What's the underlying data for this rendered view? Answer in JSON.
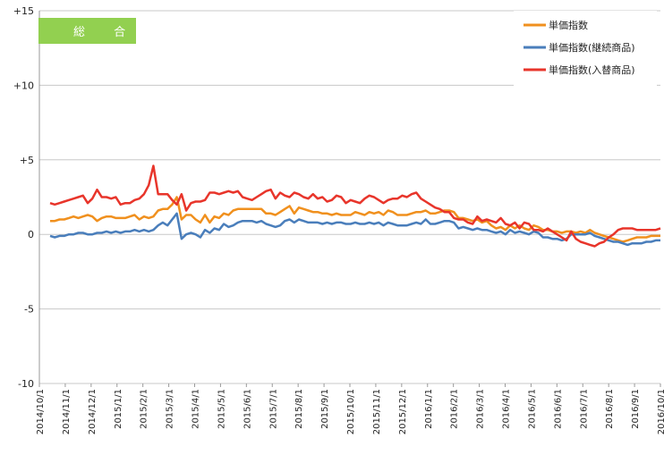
{
  "chart_data": {
    "type": "line",
    "badge": {
      "label": "総 合",
      "color": "#92d050"
    },
    "ylim": [
      -10,
      15
    ],
    "yticks": [
      {
        "value": 15,
        "label": "+15"
      },
      {
        "value": 10,
        "label": "+10"
      },
      {
        "value": 5,
        "label": "+5"
      },
      {
        "value": 0,
        "label": "0"
      },
      {
        "value": -5,
        "label": "-5"
      },
      {
        "value": -10,
        "label": "-10"
      }
    ],
    "xtick_labels": [
      "2014/10/1",
      "2014/11/1",
      "2014/12/1",
      "2015/1/1",
      "2015/2/1",
      "2015/3/1",
      "2015/4/1",
      "2015/5/1",
      "2015/6/1",
      "2015/7/1",
      "2015/8/1",
      "2015/9/1",
      "2015/10/1",
      "2015/11/1",
      "2015/12/1",
      "2016/1/1",
      "2016/2/1",
      "2016/3/1",
      "2016/4/1",
      "2016/5/1",
      "2016/6/1",
      "2016/7/1",
      "2016/8/1",
      "2016/9/1",
      "2016/10/1"
    ],
    "grid": "horizontal",
    "legend_position": "top-right",
    "note": "Weekly values; 24 monthly tick intervals with 4-5 points per month.",
    "series": [
      {
        "name": "単価指数",
        "color": "#f0901e",
        "values": [
          0.9,
          0.9,
          1.0,
          1.0,
          1.1,
          1.2,
          1.1,
          1.2,
          1.3,
          1.2,
          0.9,
          1.1,
          1.2,
          1.2,
          1.1,
          1.1,
          1.1,
          1.2,
          1.3,
          1.0,
          1.2,
          1.1,
          1.2,
          1.6,
          1.7,
          1.7,
          2.0,
          2.5,
          1.0,
          1.3,
          1.3,
          1.0,
          0.8,
          1.3,
          0.8,
          1.2,
          1.1,
          1.4,
          1.3,
          1.6,
          1.7,
          1.7,
          1.7,
          1.7,
          1.7,
          1.7,
          1.4,
          1.4,
          1.3,
          1.5,
          1.7,
          1.9,
          1.4,
          1.8,
          1.7,
          1.6,
          1.5,
          1.5,
          1.4,
          1.4,
          1.3,
          1.4,
          1.3,
          1.3,
          1.3,
          1.5,
          1.4,
          1.3,
          1.5,
          1.4,
          1.5,
          1.3,
          1.6,
          1.5,
          1.3,
          1.3,
          1.3,
          1.4,
          1.5,
          1.5,
          1.6,
          1.4,
          1.4,
          1.5,
          1.6,
          1.6,
          1.5,
          1.1,
          1.1,
          1.0,
          0.9,
          1.0,
          0.8,
          0.9,
          0.6,
          0.4,
          0.5,
          0.3,
          0.6,
          0.4,
          0.6,
          0.4,
          0.3,
          0.6,
          0.5,
          0.3,
          0.3,
          0.2,
          0.2,
          0.1,
          0.2,
          0.2,
          0.1,
          0.2,
          0.1,
          0.3,
          0.1,
          0.0,
          -0.1,
          -0.2,
          -0.3,
          -0.4,
          -0.5,
          -0.4,
          -0.3,
          -0.2,
          -0.2,
          -0.2,
          -0.1,
          -0.1,
          -0.1
        ]
      },
      {
        "name": "単価指数(継続商品)",
        "color": "#4a7ebb",
        "values": [
          -0.1,
          -0.2,
          -0.1,
          -0.1,
          0.0,
          0.0,
          0.1,
          0.1,
          0.0,
          0.0,
          0.1,
          0.1,
          0.2,
          0.1,
          0.2,
          0.1,
          0.2,
          0.2,
          0.3,
          0.2,
          0.3,
          0.2,
          0.3,
          0.6,
          0.8,
          0.6,
          1.0,
          1.4,
          -0.3,
          0.0,
          0.1,
          0.0,
          -0.2,
          0.3,
          0.1,
          0.4,
          0.3,
          0.7,
          0.5,
          0.6,
          0.8,
          0.9,
          0.9,
          0.9,
          0.8,
          0.9,
          0.7,
          0.6,
          0.5,
          0.6,
          0.9,
          1.0,
          0.8,
          1.0,
          0.9,
          0.8,
          0.8,
          0.8,
          0.7,
          0.8,
          0.7,
          0.8,
          0.8,
          0.7,
          0.7,
          0.8,
          0.7,
          0.7,
          0.8,
          0.7,
          0.8,
          0.6,
          0.8,
          0.7,
          0.6,
          0.6,
          0.6,
          0.7,
          0.8,
          0.7,
          1.0,
          0.7,
          0.7,
          0.8,
          0.9,
          0.9,
          0.8,
          0.4,
          0.5,
          0.4,
          0.3,
          0.4,
          0.3,
          0.3,
          0.2,
          0.1,
          0.2,
          0.0,
          0.3,
          0.1,
          0.2,
          0.1,
          0.0,
          0.2,
          0.1,
          -0.2,
          -0.2,
          -0.3,
          -0.3,
          -0.4,
          -0.3,
          0.0,
          0.0,
          0.0,
          0.0,
          0.1,
          -0.1,
          -0.2,
          -0.3,
          -0.4,
          -0.5,
          -0.5,
          -0.6,
          -0.7,
          -0.6,
          -0.6,
          -0.6,
          -0.5,
          -0.5,
          -0.4,
          -0.4
        ]
      },
      {
        "name": "単価指数(入替商品)",
        "color": "#e8352b",
        "values": [
          2.1,
          2.0,
          2.1,
          2.2,
          2.3,
          2.4,
          2.5,
          2.6,
          2.1,
          2.4,
          3.0,
          2.5,
          2.5,
          2.4,
          2.5,
          2.0,
          2.1,
          2.1,
          2.3,
          2.4,
          2.7,
          3.3,
          4.6,
          2.7,
          2.7,
          2.7,
          2.3,
          2.0,
          2.7,
          1.6,
          2.1,
          2.2,
          2.2,
          2.3,
          2.8,
          2.8,
          2.7,
          2.8,
          2.9,
          2.8,
          2.9,
          2.5,
          2.4,
          2.3,
          2.5,
          2.7,
          2.9,
          3.0,
          2.4,
          2.8,
          2.6,
          2.5,
          2.8,
          2.7,
          2.5,
          2.4,
          2.7,
          2.4,
          2.5,
          2.2,
          2.3,
          2.6,
          2.5,
          2.1,
          2.3,
          2.2,
          2.1,
          2.4,
          2.6,
          2.5,
          2.3,
          2.1,
          2.3,
          2.4,
          2.4,
          2.6,
          2.5,
          2.7,
          2.8,
          2.4,
          2.2,
          2.0,
          1.8,
          1.7,
          1.5,
          1.5,
          1.1,
          1.0,
          1.0,
          0.8,
          0.7,
          1.2,
          0.9,
          1.0,
          0.9,
          0.8,
          1.1,
          0.7,
          0.6,
          0.8,
          0.4,
          0.8,
          0.7,
          0.3,
          0.3,
          0.2,
          0.4,
          0.2,
          0.0,
          -0.2,
          -0.4,
          0.2,
          -0.3,
          -0.5,
          -0.6,
          -0.7,
          -0.8,
          -0.6,
          -0.5,
          -0.2,
          0.0,
          0.3,
          0.4,
          0.4,
          0.4,
          0.3,
          0.3,
          0.3,
          0.3,
          0.3,
          0.4
        ]
      }
    ]
  }
}
